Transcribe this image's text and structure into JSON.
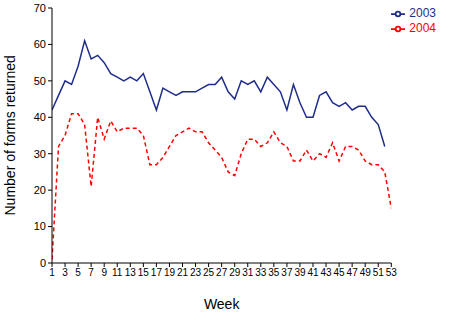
{
  "chart_data": {
    "type": "line",
    "x_label": "Week",
    "y_label": "Number of forms returned",
    "x": [
      1,
      2,
      3,
      4,
      5,
      6,
      7,
      8,
      9,
      10,
      11,
      12,
      13,
      14,
      15,
      16,
      17,
      18,
      19,
      20,
      21,
      22,
      23,
      24,
      25,
      26,
      27,
      28,
      29,
      30,
      31,
      32,
      33,
      34,
      35,
      36,
      37,
      38,
      39,
      40,
      41,
      42,
      43,
      44,
      45,
      46,
      47,
      48,
      49,
      50,
      51,
      52,
      53
    ],
    "xlim": [
      1,
      53
    ],
    "xticks": [
      1,
      3,
      5,
      7,
      9,
      11,
      13,
      15,
      17,
      19,
      21,
      23,
      25,
      27,
      29,
      31,
      33,
      35,
      37,
      39,
      41,
      43,
      45,
      47,
      49,
      51,
      53
    ],
    "ylim": [
      0,
      70
    ],
    "yticks": [
      0,
      10,
      20,
      30,
      40,
      50,
      60,
      70
    ],
    "legend": "upper right",
    "series": [
      {
        "name": "2003",
        "color": "#1f2d8a",
        "line_style": "solid",
        "values": [
          42,
          46,
          50,
          49,
          54,
          61,
          56,
          57,
          55,
          52,
          51,
          50,
          51,
          50,
          52,
          47,
          42,
          48,
          47,
          46,
          47,
          47,
          47,
          48,
          49,
          49,
          51,
          47,
          45,
          50,
          49,
          50,
          47,
          51,
          49,
          47,
          42,
          49,
          44,
          40,
          40,
          46,
          47,
          44,
          43,
          44,
          42,
          43,
          43,
          40,
          38,
          32,
          null
        ]
      },
      {
        "name": "2004",
        "color": "#ff0000",
        "line_style": "dashed",
        "values": [
          1,
          32,
          35,
          41,
          41,
          38,
          21,
          40,
          34,
          39,
          36,
          37,
          37,
          37,
          35,
          27,
          27,
          29,
          32,
          35,
          36,
          37,
          36,
          36,
          33,
          31,
          29,
          25,
          24,
          30,
          34,
          34,
          32,
          33,
          36,
          33,
          32,
          28,
          28,
          31,
          28,
          30,
          29,
          33,
          28,
          32,
          32,
          31,
          28,
          27,
          27,
          25,
          15
        ]
      }
    ]
  }
}
